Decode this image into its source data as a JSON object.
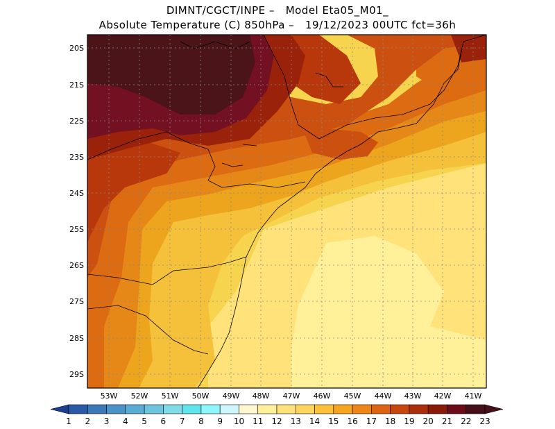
{
  "title_line1": "DIMNT/CGCT/INPE –   Model Eta05_M01_",
  "title_line2": "Absolute Temperature (C) 850hPa –   19/12/2023 00UTC fct=36h",
  "lat_labels": [
    "20S",
    "21S",
    "22S",
    "23S",
    "24S",
    "25S",
    "26S",
    "27S",
    "28S",
    "29S"
  ],
  "lon_labels": [
    "53W",
    "52W",
    "51W",
    "50W",
    "49W",
    "48W",
    "47W",
    "46W",
    "45W",
    "44W",
    "43W",
    "42W",
    "41W"
  ],
  "colorbar": {
    "labels": [
      "1",
      "2",
      "3",
      "4",
      "5",
      "6",
      "7",
      "8",
      "9",
      "10",
      "11",
      "12",
      "13",
      "14",
      "15",
      "16",
      "17",
      "18",
      "19",
      "20",
      "21",
      "22",
      "23"
    ],
    "colors": [
      "#1f3d8f",
      "#2a5aa6",
      "#3a78b8",
      "#4a93c6",
      "#59acd3",
      "#6cc4de",
      "#7fdbe8",
      "#5fe5ee",
      "#8ff7fb",
      "#cff7fb",
      "#fff7cf",
      "#fff09a",
      "#ffe37a",
      "#ffd45a",
      "#ffc13a",
      "#f7a51e",
      "#ee8515",
      "#dd6410",
      "#c8470d",
      "#aa2f0a",
      "#8a1a08",
      "#6b0c18",
      "#45101a"
    ]
  },
  "map_colors": {
    "t12": "#fff09a",
    "t13": "#ffe37a",
    "t14": "#f7d44e",
    "t15": "#f5c13a",
    "t16": "#eea51e",
    "t17": "#e68818",
    "t18": "#dd6b12",
    "t19": "#cc5010",
    "t20": "#b8380c",
    "t21": "#9a220a",
    "t22": "#731022",
    "t23": "#4a1419"
  }
}
